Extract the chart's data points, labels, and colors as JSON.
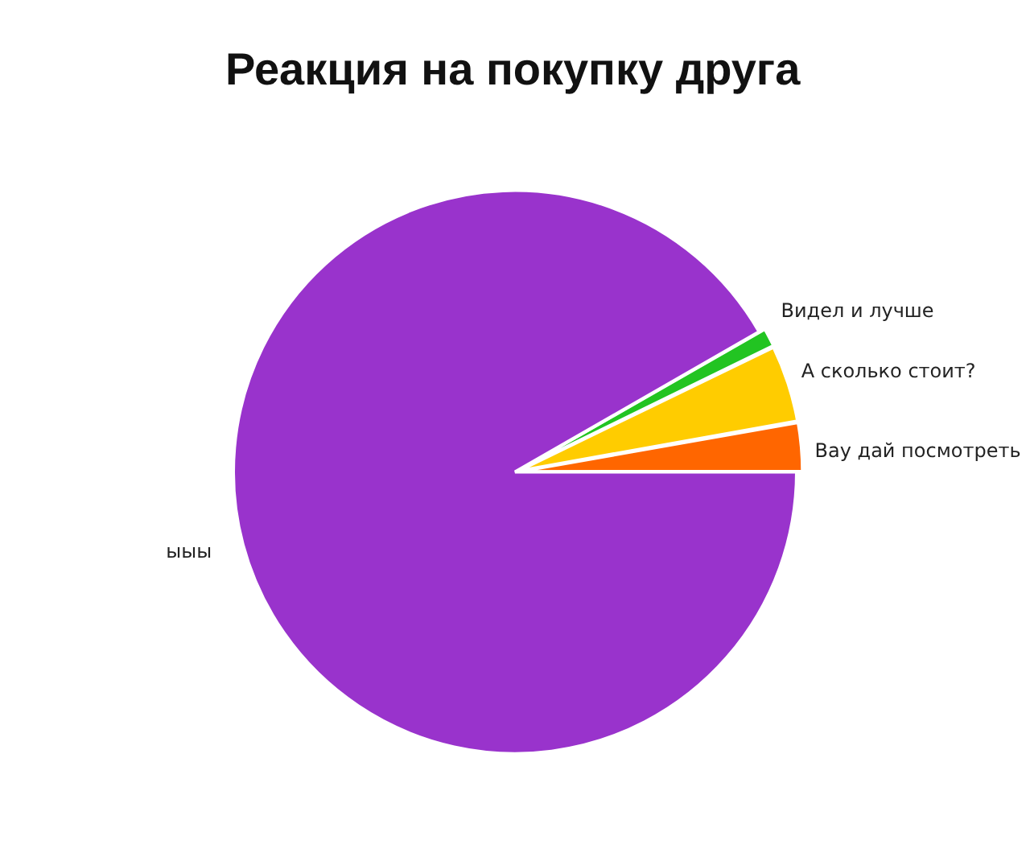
{
  "chart_data": {
    "type": "pie",
    "title": "Реакция на покупку друга",
    "categories": [
      "Видел и лучше",
      "А сколько стоит?",
      "Вау дай посмотреть",
      "ыыы"
    ],
    "values": [
      1.1,
      4.4,
      2.8,
      91.7
    ],
    "colors": [
      "#22c422",
      "#ffcc00",
      "#ff6600",
      "#9933cc"
    ],
    "legend": false
  }
}
